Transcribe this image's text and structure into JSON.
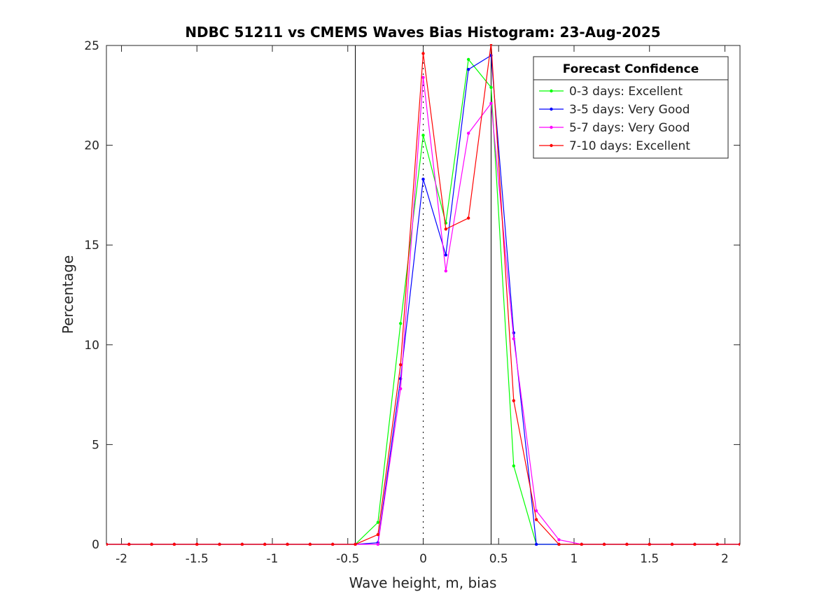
{
  "chart_data": {
    "type": "line",
    "title": "NDBC 51211 vs CMEMS Waves Bias Histogram: 23-Aug-2025",
    "xlabel": "Wave height, m, bias",
    "ylabel": "Percentage",
    "xlim": [
      -2.1,
      2.1
    ],
    "ylim": [
      0,
      25
    ],
    "xticks": [
      -2,
      -1.5,
      -1,
      -0.5,
      0,
      0.5,
      1,
      1.5,
      2
    ],
    "xtick_labels": [
      "-2",
      "-1.5",
      "-1",
      "-0.5",
      "0",
      "0.5",
      "1",
      "1.5",
      "2"
    ],
    "yticks": [
      0,
      5,
      10,
      15,
      20,
      25
    ],
    "ytick_labels": [
      "0",
      "5",
      "10",
      "15",
      "20",
      "25"
    ],
    "vertical_lines": [
      {
        "x": -0.45,
        "style": "solid"
      },
      {
        "x": 0,
        "style": "dotted"
      },
      {
        "x": 0.45,
        "style": "solid"
      }
    ],
    "legend": {
      "title": "Forecast Confidence",
      "placement": "top-right"
    },
    "x": [
      -2.1,
      -1.95,
      -1.8,
      -1.65,
      -1.5,
      -1.35,
      -1.2,
      -1.05,
      -0.9,
      -0.75,
      -0.6,
      -0.45,
      -0.3,
      -0.15,
      0,
      0.15,
      0.3,
      0.45,
      0.6,
      0.75,
      0.9,
      1.05,
      1.2,
      1.35,
      1.5,
      1.65,
      1.8,
      1.95,
      2.1
    ],
    "series": [
      {
        "name": "0-3 days: Excellent",
        "color": "#00ff00",
        "values": [
          0,
          0,
          0,
          0,
          0,
          0,
          0,
          0,
          0,
          0,
          0,
          0,
          1.1,
          11.07,
          20.5,
          16.1,
          24.3,
          22.9,
          3.93,
          0,
          0,
          0,
          0,
          0,
          0,
          0,
          0,
          0,
          0
        ]
      },
      {
        "name": "3-5 days: Very Good",
        "color": "#0000ff",
        "values": [
          0,
          0,
          0,
          0,
          0,
          0,
          0,
          0,
          0,
          0,
          0,
          0,
          0.08,
          8.3,
          18.3,
          14.5,
          23.8,
          24.5,
          10.6,
          0,
          0,
          0,
          0,
          0,
          0,
          0,
          0,
          0,
          0
        ]
      },
      {
        "name": "5-7 days: Very Good",
        "color": "#ff00ff",
        "values": [
          0,
          0,
          0,
          0,
          0,
          0,
          0,
          0,
          0,
          0,
          0,
          0,
          0,
          7.8,
          23.4,
          13.7,
          20.6,
          22.1,
          10.3,
          1.68,
          0.23,
          0,
          0,
          0,
          0,
          0,
          0,
          0,
          0
        ]
      },
      {
        "name": "7-10 days: Excellent",
        "color": "#ff0000",
        "values": [
          0,
          0,
          0,
          0,
          0,
          0,
          0,
          0,
          0,
          0,
          0,
          0,
          0.49,
          9.0,
          24.6,
          15.8,
          16.35,
          25.1,
          7.2,
          1.24,
          0,
          0,
          0,
          0,
          0,
          0,
          0,
          0,
          0
        ]
      }
    ]
  }
}
